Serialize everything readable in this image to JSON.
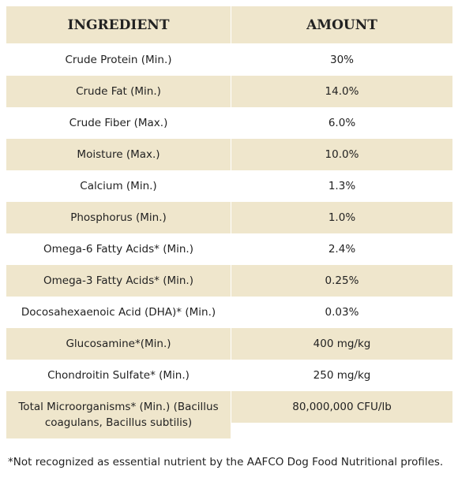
{
  "table": {
    "header": [
      "INGREDIENT",
      "AMOUNT"
    ],
    "rows": [
      [
        "Crude Protein (Min.)",
        "30%"
      ],
      [
        "Crude Fat (Min.)",
        "14.0%"
      ],
      [
        "Crude Fiber (Max.)",
        "6.0%"
      ],
      [
        "Moisture (Max.)",
        "10.0%"
      ],
      [
        "Calcium (Min.)",
        "1.3%"
      ],
      [
        "Phosphorus (Min.)",
        "1.0%"
      ],
      [
        "Omega-6 Fatty Acids* (Min.)",
        "2.4%"
      ],
      [
        "Omega-3 Fatty Acids* (Min.)",
        "0.25%"
      ],
      [
        "Docosahexaenoic Acid (DHA)* (Min.)",
        "0.03%"
      ],
      [
        "Glucosamine*(Min.)",
        "400 mg/kg"
      ],
      [
        "Chondroitin Sulfate* (Min.)",
        "250 mg/kg"
      ],
      [
        "Total Microorganisms* (Min.) (Bacillus coagulans, Bacillus subtilis)",
        "80,000,000 CFU/lb"
      ]
    ]
  },
  "footnote": "*Not recognized as essential nutrient by the AAFCO Dog Food Nutritional profiles."
}
